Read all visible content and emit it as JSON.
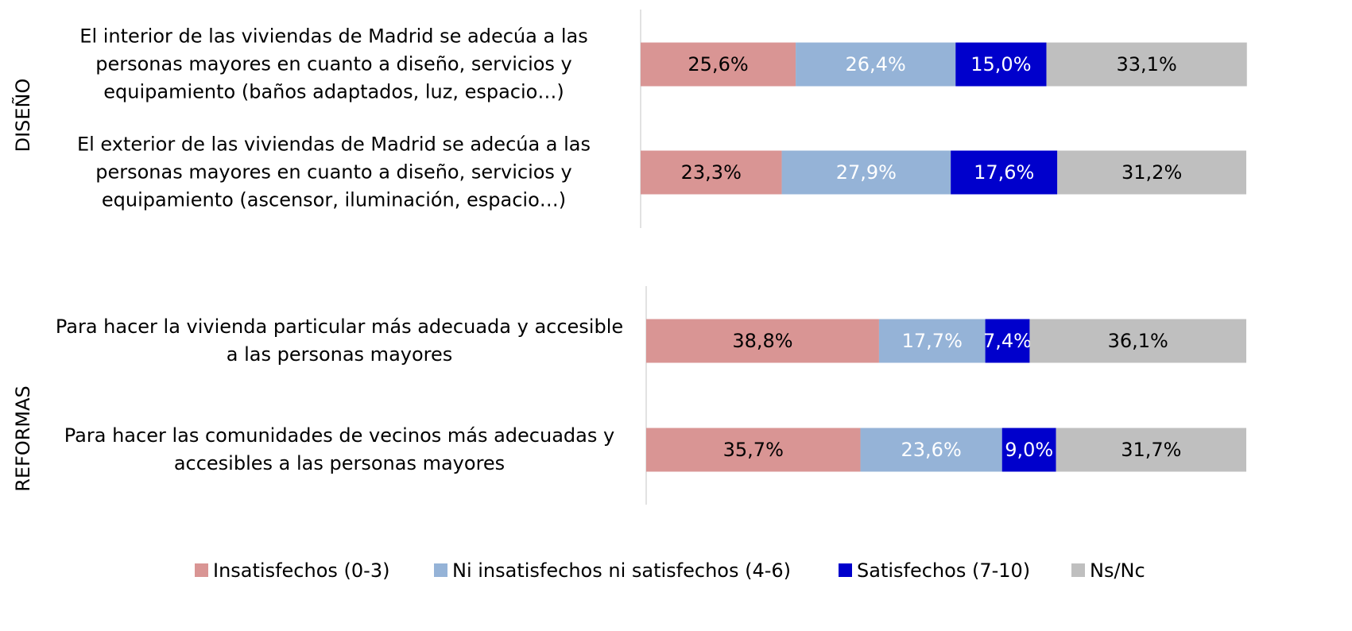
{
  "chart_data": {
    "type": "stacked_barh",
    "categories": [
      "El interior de las viviendas de Madrid se adecúa a las personas mayores en cuanto a diseño, servicios y equipamiento (baños adaptados, luz, espacio…)",
      "El exterior de las viviendas de Madrid se adecúa a las personas mayores en cuanto a diseño, servicios y equipamiento (ascensor, iluminación, espacio…)",
      "Para hacer la vivienda particular más adecuada y accesible a las personas mayores",
      "Para hacer las comunidades de vecinos más adecuadas y accesibles a las personas mayores"
    ],
    "groups": [
      {
        "label": "DISEÑO",
        "categories": [
          0,
          1
        ]
      },
      {
        "label": "REFORMAS",
        "categories": [
          2,
          3
        ]
      }
    ],
    "series": [
      {
        "name": "Insatisfechos (0-3)",
        "color": "#d99594",
        "label_color": "#000000",
        "values": [
          25.6,
          23.3,
          38.8,
          35.7
        ],
        "value_labels": [
          "25,6%",
          "23,3%",
          "38,8%",
          "35,7%"
        ]
      },
      {
        "name": "Ni insatisfechos ni satisfechos (4-6)",
        "color": "#95b3d7",
        "label_color": "#ffffff",
        "values": [
          26.4,
          27.9,
          17.7,
          23.6
        ],
        "value_labels": [
          "26,4%",
          "27,9%",
          "17,7%",
          "23,6%"
        ]
      },
      {
        "name": "Satisfechos (7-10)",
        "color": "#0000cc",
        "label_color": "#ffffff",
        "values": [
          15.0,
          17.6,
          7.4,
          9.0
        ],
        "value_labels": [
          "15,0%",
          "17,6%",
          "7,4%",
          "9,0%"
        ]
      },
      {
        "name": "Ns/Nc",
        "color": "#bfbfbf",
        "label_color": "#000000",
        "values": [
          33.1,
          31.2,
          36.1,
          31.7
        ],
        "value_labels": [
          "33,1%",
          "31,2%",
          "36,1%",
          "31,7%"
        ]
      }
    ],
    "xlim": [
      0,
      100
    ],
    "legend": "bottom"
  }
}
